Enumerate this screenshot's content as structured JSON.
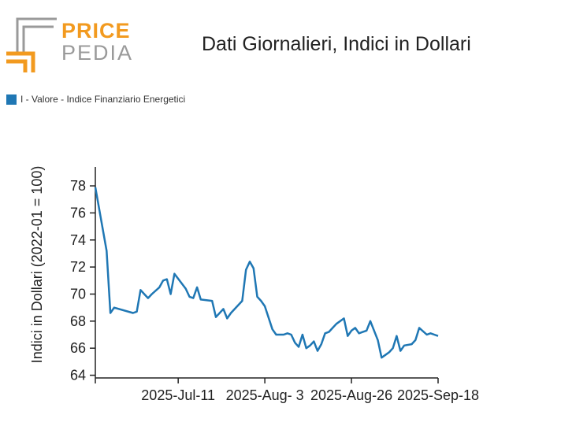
{
  "brand": {
    "top": "PRICE",
    "bottom": "PEDIA"
  },
  "colors": {
    "series": "#1f77b4",
    "logo_orange": "#f29a1f",
    "logo_gray": "#9a9a9a"
  },
  "chart_data": {
    "type": "line",
    "title": "Dati Giornalieri, Indici in Dollari",
    "ylabel": "Indici in Dollari (2022-01 = 100)",
    "xlabel": "",
    "legend": {
      "placement": "top-left",
      "entries": [
        "I - Valore - Indice Finanziario Energetici"
      ]
    },
    "ylim": [
      63.8,
      79.4
    ],
    "yticks": [
      64,
      66,
      68,
      70,
      72,
      74,
      76,
      78
    ],
    "xlim": [
      "2025-06-19",
      "2025-09-18"
    ],
    "xticks": [
      {
        "date": "2025-07-11",
        "label": "2025-Jul-11"
      },
      {
        "date": "2025-08-03",
        "label": "2025-Aug- 3"
      },
      {
        "date": "2025-08-26",
        "label": "2025-Aug-26"
      },
      {
        "date": "2025-09-18",
        "label": "2025-Sep-18"
      }
    ],
    "grid": false,
    "series": [
      {
        "name": "I - Valore - Indice Finanziario Energetici",
        "x": [
          "2025-06-19",
          "2025-06-22",
          "2025-06-23",
          "2025-06-24",
          "2025-06-29",
          "2025-06-30",
          "2025-07-01",
          "2025-07-02",
          "2025-07-03",
          "2025-07-04",
          "2025-07-06",
          "2025-07-07",
          "2025-07-08",
          "2025-07-09",
          "2025-07-10",
          "2025-07-13",
          "2025-07-14",
          "2025-07-15",
          "2025-07-16",
          "2025-07-17",
          "2025-07-20",
          "2025-07-21",
          "2025-07-23",
          "2025-07-24",
          "2025-07-25",
          "2025-07-28",
          "2025-07-29",
          "2025-07-30",
          "2025-07-31",
          "2025-08-01",
          "2025-08-02",
          "2025-08-03",
          "2025-08-05",
          "2025-08-06",
          "2025-08-08",
          "2025-08-09",
          "2025-08-10",
          "2025-08-11",
          "2025-08-12",
          "2025-08-13",
          "2025-08-14",
          "2025-08-15",
          "2025-08-16",
          "2025-08-17",
          "2025-08-18",
          "2025-08-19",
          "2025-08-20",
          "2025-08-21",
          "2025-08-22",
          "2025-08-24",
          "2025-08-25",
          "2025-08-26",
          "2025-08-27",
          "2025-08-28",
          "2025-08-29",
          "2025-08-30",
          "2025-08-31",
          "2025-09-02",
          "2025-09-03",
          "2025-09-04",
          "2025-09-05",
          "2025-09-06",
          "2025-09-07",
          "2025-09-08",
          "2025-09-09",
          "2025-09-11",
          "2025-09-12",
          "2025-09-13",
          "2025-09-15",
          "2025-09-16",
          "2025-09-17",
          "2025-09-18"
        ],
        "y": [
          77.9,
          73.2,
          68.6,
          69.0,
          68.6,
          68.7,
          70.3,
          70.0,
          69.7,
          70.0,
          70.5,
          71.0,
          71.1,
          70.0,
          71.5,
          70.4,
          69.8,
          69.7,
          70.5,
          69.6,
          69.5,
          68.3,
          68.9,
          68.2,
          68.6,
          69.5,
          71.8,
          72.4,
          71.9,
          69.8,
          69.5,
          69.1,
          67.4,
          67.0,
          67.0,
          67.1,
          67.0,
          66.4,
          66.1,
          67.0,
          66.0,
          66.2,
          66.5,
          65.8,
          66.3,
          67.1,
          67.2,
          67.5,
          67.8,
          68.2,
          66.9,
          67.3,
          67.5,
          67.1,
          67.2,
          67.3,
          68.0,
          66.6,
          65.3,
          65.5,
          65.7,
          66.0,
          66.9,
          65.8,
          66.2,
          66.3,
          66.6,
          67.5,
          67.0,
          67.1,
          67.0,
          66.9
        ]
      }
    ]
  }
}
